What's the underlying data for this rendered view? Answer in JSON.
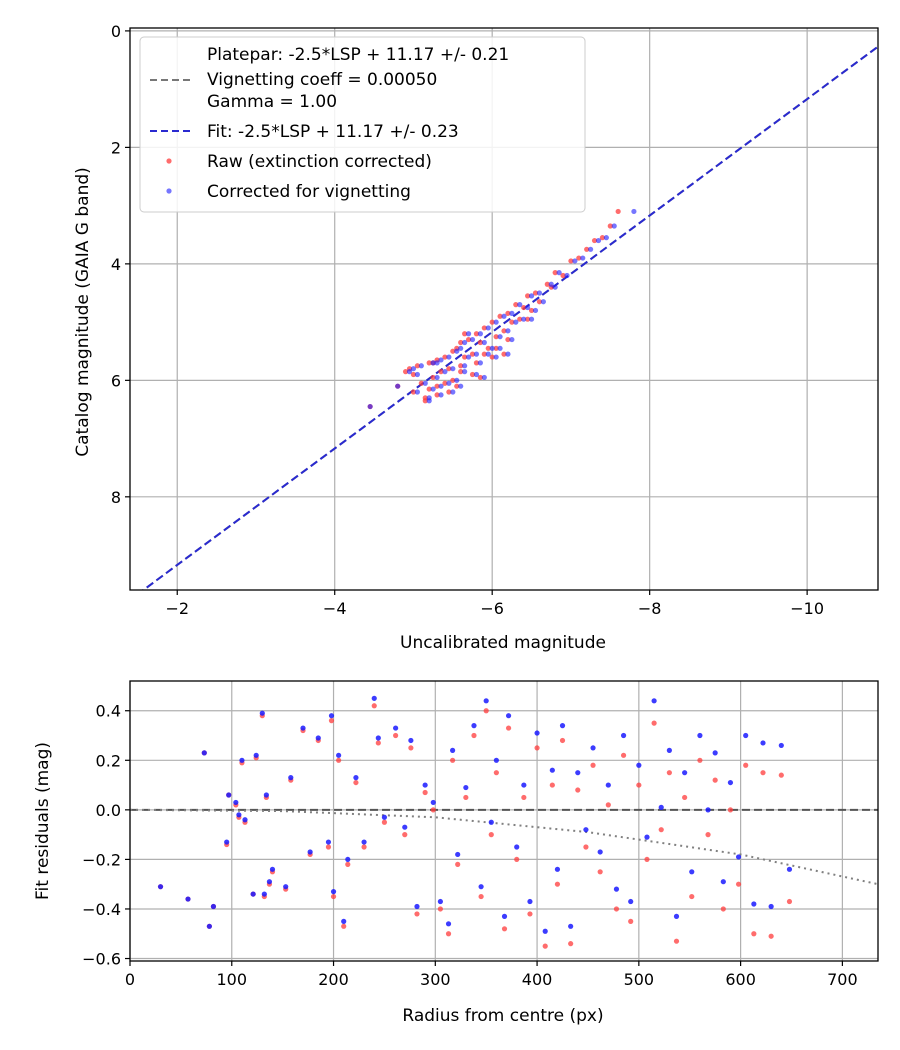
{
  "colors": {
    "raw": "#ff3b3b",
    "corrected": "#1a1aff",
    "fit": "#2a2ad0",
    "platepar": "#777777",
    "grid": "#b0b0b0",
    "vignette_curve": "#808080"
  },
  "chart_data": [
    {
      "type": "scatter",
      "xlabel": "Uncalibrated magnitude",
      "ylabel": "Catalog magnitude (GAIA G band)",
      "xlim": [
        -1.4,
        -10.9
      ],
      "ylim": [
        9.6,
        -0.05
      ],
      "x_inverted": true,
      "y_inverted": true,
      "grid": true,
      "legend_position": "upper-left",
      "xticks": [
        -2,
        -4,
        -6,
        -8,
        -10
      ],
      "xtick_labels": [
        "−2",
        "−4",
        "−6",
        "−8",
        "−10"
      ],
      "yticks": [
        0,
        2,
        4,
        6,
        8
      ],
      "ytick_labels": [
        "0",
        "2",
        "4",
        "6",
        "8"
      ],
      "legend": {
        "platepar": "Platepar: -2.5*LSP + 11.17 +/- 0.21",
        "vignetting": "Vignetting coeff = 0.00050",
        "gamma": "Gamma = 1.00",
        "fit": "Fit: -2.5*LSP + 11.17 +/- 0.23",
        "raw": "Raw (extinction corrected)",
        "corrected": "Corrected for vignetting"
      },
      "lines": [
        {
          "name": "Platepar",
          "x": [
            -1.0,
            -11.0
          ],
          "y": [
            10.17,
            0.17
          ],
          "style": "dashed"
        },
        {
          "name": "Fit",
          "x": [
            -1.0,
            -11.0
          ],
          "y": [
            10.17,
            0.17
          ],
          "style": "dashed"
        }
      ],
      "series": [
        {
          "name": "Raw (extinction corrected)",
          "x": [
            -4.45,
            -4.8,
            -4.9,
            -5.0,
            -5.05,
            -5.1,
            -5.15,
            -5.2,
            -5.2,
            -5.25,
            -5.3,
            -5.3,
            -5.35,
            -5.4,
            -5.4,
            -5.45,
            -5.5,
            -5.5,
            -5.55,
            -5.6,
            -5.6,
            -5.65,
            -5.7,
            -5.75,
            -5.8,
            -5.8,
            -5.85,
            -5.9,
            -5.95,
            -6.0,
            -6.0,
            -6.05,
            -6.1,
            -6.15,
            -6.2,
            -6.25,
            -6.3,
            -6.35,
            -6.4,
            -6.45,
            -6.5,
            -6.55,
            -6.6,
            -6.7,
            -6.75,
            -6.8,
            -6.9,
            -7.0,
            -7.1,
            -7.2,
            -7.3,
            -7.4,
            -7.5,
            -7.6,
            -5.0,
            -5.3,
            -5.6,
            -5.9,
            -6.2,
            -5.45,
            -5.75,
            -6.05,
            -4.95,
            -5.25,
            -5.55,
            -5.85,
            -6.15,
            -6.45,
            -5.15,
            -5.65
          ],
          "y": [
            6.45,
            6.1,
            5.85,
            6.2,
            5.75,
            6.05,
            6.3,
            5.7,
            6.15,
            5.95,
            5.65,
            6.25,
            5.85,
            5.6,
            6.05,
            5.8,
            5.5,
            6.0,
            5.45,
            5.75,
            5.35,
            5.6,
            5.3,
            5.55,
            5.2,
            5.7,
            5.35,
            5.1,
            5.45,
            5.0,
            5.6,
            5.25,
            4.9,
            5.15,
            4.85,
            5.0,
            4.7,
            4.95,
            4.75,
            4.55,
            4.8,
            4.5,
            4.65,
            4.35,
            4.4,
            4.15,
            4.2,
            3.95,
            3.9,
            3.75,
            3.6,
            3.55,
            3.35,
            3.1,
            5.9,
            6.1,
            5.85,
            5.55,
            5.3,
            6.2,
            5.9,
            5.45,
            5.8,
            5.7,
            6.1,
            5.95,
            5.55,
            4.95,
            6.35,
            5.2
          ]
        },
        {
          "name": "Corrected for vignetting",
          "x": [
            -4.45,
            -4.8,
            -4.95,
            -5.05,
            -5.1,
            -5.15,
            -5.2,
            -5.25,
            -5.25,
            -5.3,
            -5.35,
            -5.35,
            -5.4,
            -5.45,
            -5.45,
            -5.5,
            -5.55,
            -5.55,
            -5.6,
            -5.65,
            -5.65,
            -5.7,
            -5.75,
            -5.8,
            -5.85,
            -5.85,
            -5.9,
            -5.95,
            -6.0,
            -6.05,
            -6.05,
            -6.1,
            -6.15,
            -6.2,
            -6.25,
            -6.3,
            -6.35,
            -6.4,
            -6.45,
            -6.5,
            -6.55,
            -6.6,
            -6.65,
            -6.75,
            -6.8,
            -6.85,
            -6.95,
            -7.05,
            -7.15,
            -7.25,
            -7.35,
            -7.45,
            -7.55,
            -7.8,
            -5.05,
            -5.35,
            -5.65,
            -5.95,
            -6.25,
            -5.5,
            -5.8,
            -6.1,
            -5.0,
            -5.3,
            -5.6,
            -5.9,
            -6.2,
            -6.5,
            -5.2,
            -5.7
          ],
          "y": [
            6.45,
            6.1,
            5.85,
            6.2,
            5.75,
            6.05,
            6.3,
            5.7,
            6.15,
            5.95,
            5.65,
            6.25,
            5.85,
            5.6,
            6.05,
            5.8,
            5.5,
            6.0,
            5.45,
            5.75,
            5.35,
            5.6,
            5.3,
            5.55,
            5.2,
            5.7,
            5.35,
            5.1,
            5.45,
            5.0,
            5.6,
            5.25,
            4.9,
            5.15,
            4.85,
            5.0,
            4.7,
            4.95,
            4.75,
            4.55,
            4.8,
            4.5,
            4.65,
            4.35,
            4.4,
            4.15,
            4.2,
            3.95,
            3.9,
            3.75,
            3.6,
            3.55,
            3.35,
            3.1,
            5.9,
            6.1,
            5.85,
            5.55,
            5.3,
            6.2,
            5.9,
            5.45,
            5.8,
            5.7,
            6.1,
            5.95,
            5.55,
            4.95,
            6.35,
            5.2
          ]
        }
      ]
    },
    {
      "type": "scatter",
      "xlabel": "Radius from centre (px)",
      "ylabel": "Fit residuals (mag)",
      "xlim": [
        0,
        735
      ],
      "ylim": [
        -0.61,
        0.52
      ],
      "grid": true,
      "xticks": [
        0,
        100,
        200,
        300,
        400,
        500,
        600,
        700
      ],
      "xtick_labels": [
        "0",
        "100",
        "200",
        "300",
        "400",
        "500",
        "600",
        "700"
      ],
      "yticks": [
        0.4,
        0.2,
        0.0,
        -0.2,
        -0.4,
        -0.6
      ],
      "ytick_labels": [
        "0.4",
        "0.2",
        "0.0",
        "−0.2",
        "−0.4",
        "−0.6"
      ],
      "reference_line": {
        "y": 0.0,
        "style": "dashed"
      },
      "vignetting_curve": {
        "x": [
          0,
          150,
          300,
          450,
          600,
          735
        ],
        "y": [
          0.0,
          -0.005,
          -0.03,
          -0.09,
          -0.18,
          -0.3
        ],
        "style": "dotted"
      },
      "series": [
        {
          "name": "Raw (extinction corrected)",
          "x": [
            30,
            57,
            73,
            78,
            82,
            95,
            97,
            104,
            107,
            110,
            113,
            121,
            124,
            130,
            132,
            134,
            137,
            140,
            153,
            158,
            170,
            177,
            185,
            195,
            198,
            200,
            205,
            210,
            214,
            222,
            230,
            240,
            244,
            250,
            261,
            270,
            276,
            282,
            290,
            298,
            305,
            313,
            317,
            322,
            330,
            338,
            345,
            350,
            355,
            360,
            368,
            372,
            380,
            387,
            393,
            400,
            408,
            415,
            420,
            425,
            433,
            440,
            448,
            455,
            462,
            470,
            478,
            485,
            492,
            500,
            508,
            515,
            522,
            530,
            537,
            545,
            552,
            560,
            568,
            575,
            583,
            590,
            598,
            605,
            613,
            622,
            630,
            640,
            648
          ],
          "y": [
            -0.31,
            -0.36,
            0.23,
            -0.47,
            -0.39,
            -0.14,
            0.06,
            0.02,
            -0.03,
            0.19,
            -0.05,
            -0.34,
            0.21,
            0.38,
            -0.35,
            0.05,
            -0.3,
            -0.25,
            -0.32,
            0.12,
            0.32,
            -0.18,
            0.28,
            -0.15,
            0.36,
            -0.35,
            0.2,
            -0.47,
            -0.22,
            0.11,
            -0.15,
            0.42,
            0.27,
            -0.05,
            0.3,
            -0.1,
            0.25,
            -0.42,
            0.07,
            0.0,
            -0.4,
            -0.5,
            0.2,
            -0.22,
            0.05,
            0.3,
            -0.35,
            0.4,
            -0.1,
            0.15,
            -0.48,
            0.33,
            -0.2,
            0.05,
            -0.42,
            0.25,
            -0.55,
            0.1,
            -0.3,
            0.28,
            -0.54,
            0.08,
            -0.15,
            0.18,
            -0.25,
            0.02,
            -0.4,
            0.22,
            -0.45,
            0.1,
            -0.2,
            0.35,
            -0.08,
            0.15,
            -0.53,
            0.05,
            -0.35,
            0.2,
            -0.1,
            0.12,
            -0.4,
            0.0,
            -0.3,
            0.18,
            -0.5,
            0.15,
            -0.51,
            0.14,
            -0.37
          ]
        },
        {
          "name": "Corrected for vignetting",
          "x": [
            30,
            57,
            73,
            78,
            82,
            95,
            97,
            104,
            107,
            110,
            113,
            121,
            124,
            130,
            132,
            134,
            137,
            140,
            153,
            158,
            170,
            177,
            185,
            195,
            198,
            200,
            205,
            210,
            214,
            222,
            230,
            240,
            244,
            250,
            261,
            270,
            276,
            282,
            290,
            298,
            305,
            313,
            317,
            322,
            330,
            338,
            345,
            350,
            355,
            360,
            368,
            372,
            380,
            387,
            393,
            400,
            408,
            415,
            420,
            425,
            433,
            440,
            448,
            455,
            462,
            470,
            478,
            485,
            492,
            500,
            508,
            515,
            522,
            530,
            537,
            545,
            552,
            560,
            568,
            575,
            583,
            590,
            598,
            605,
            613,
            622,
            630,
            640,
            648
          ],
          "y": [
            -0.31,
            -0.36,
            0.23,
            -0.47,
            -0.39,
            -0.13,
            0.06,
            0.03,
            -0.02,
            0.2,
            -0.04,
            -0.34,
            0.22,
            0.39,
            -0.34,
            0.06,
            -0.29,
            -0.24,
            -0.31,
            0.13,
            0.33,
            -0.17,
            0.29,
            -0.13,
            0.38,
            -0.33,
            0.22,
            -0.45,
            -0.2,
            0.13,
            -0.13,
            0.45,
            0.29,
            -0.03,
            0.33,
            -0.07,
            0.28,
            -0.39,
            0.1,
            0.03,
            -0.37,
            -0.46,
            0.24,
            -0.18,
            0.09,
            0.34,
            -0.31,
            0.44,
            -0.05,
            0.2,
            -0.43,
            0.38,
            -0.15,
            0.1,
            -0.37,
            0.31,
            -0.49,
            0.16,
            -0.24,
            0.34,
            -0.47,
            0.15,
            -0.08,
            0.25,
            -0.17,
            0.1,
            -0.32,
            0.3,
            -0.37,
            0.18,
            -0.11,
            0.44,
            0.01,
            0.24,
            -0.43,
            0.15,
            -0.25,
            0.3,
            0.0,
            0.23,
            -0.29,
            0.11,
            -0.19,
            0.3,
            -0.38,
            0.27,
            -0.39,
            0.26,
            -0.24
          ]
        }
      ]
    }
  ]
}
